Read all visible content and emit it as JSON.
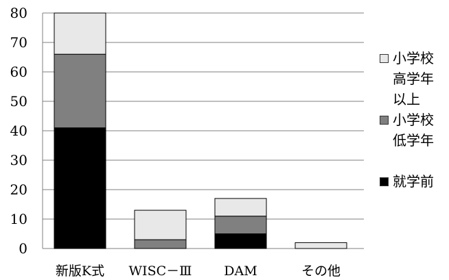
{
  "chart_data": {
    "type": "bar",
    "stacked": true,
    "categories": [
      "新版K式",
      "WISC－Ⅲ",
      "DAM",
      "その他"
    ],
    "series": [
      {
        "name": "就学前",
        "values": [
          41,
          0,
          5,
          0
        ],
        "color": "#000000"
      },
      {
        "name": "小学校低学年",
        "values": [
          25,
          3,
          6,
          0
        ],
        "color": "#808080"
      },
      {
        "name": "小学校高学年以上",
        "values": [
          14,
          10,
          6,
          2
        ],
        "color": "#e8e8e8"
      }
    ],
    "ylim": [
      0,
      80
    ],
    "yticks": [
      0,
      10,
      20,
      30,
      40,
      50,
      60,
      70,
      80
    ],
    "grid": true,
    "legend_position": "right",
    "legend": [
      {
        "label": "小学校\n高学年\n以上",
        "color": "#e8e8e8"
      },
      {
        "label": "小学校\n低学年",
        "color": "#808080"
      },
      {
        "label": "就学前",
        "color": "#000000"
      }
    ]
  }
}
